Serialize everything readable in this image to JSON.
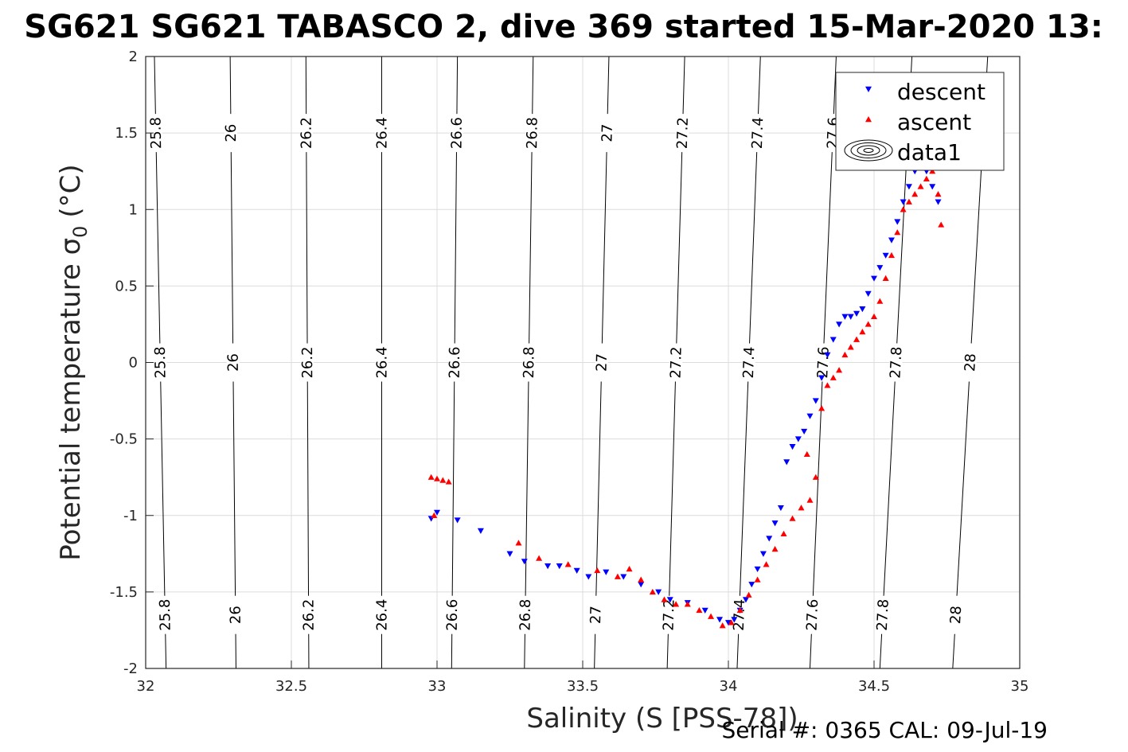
{
  "chart_data": {
    "type": "scatter",
    "title": "SG621 SG621 TABASCO 2, dive 369 started 15-Mar-2020 13:",
    "xlabel": "Salinity (S [PSS-78])",
    "ylabel": "Potential temperature σ",
    "ylabel_sub": "0",
    "ylabel_unit": "(°C)",
    "footer": "Serial #: 0365  CAL: 09-Jul-19",
    "xlim": [
      32,
      35
    ],
    "ylim": [
      -2,
      2
    ],
    "x_ticks": [
      "32",
      "32.5",
      "33",
      "33.5",
      "34",
      "34.5",
      "35"
    ],
    "y_ticks": [
      "-2",
      "-1.5",
      "-1",
      "-0.5",
      "0",
      "0.5",
      "1",
      "1.5",
      "2"
    ],
    "grid": true,
    "legend_position": "top-right",
    "legend": [
      "descent",
      "ascent",
      "data1"
    ],
    "density_contours": {
      "levels": [
        25.8,
        26,
        26.2,
        26.4,
        26.6,
        26.8,
        27,
        27.2,
        27.4,
        27.6,
        27.8,
        28
      ],
      "labels": [
        "25.8",
        "26",
        "26.2",
        "26.4",
        "26.6",
        "26.8",
        "27",
        "27.2",
        "27.4",
        "27.6",
        "27.8",
        "28"
      ],
      "salinity_at_temp_-2": [
        32.07,
        32.31,
        32.56,
        32.81,
        33.05,
        33.3,
        33.54,
        33.79,
        34.03,
        34.28,
        34.52,
        34.77
      ],
      "salinity_at_temp_2": [
        32.03,
        32.29,
        32.55,
        32.81,
        33.07,
        33.33,
        33.59,
        33.85,
        34.11,
        34.37,
        34.63,
        34.89
      ]
    },
    "series": [
      {
        "name": "descent",
        "color": "#0000ff",
        "marker": "triangle-down",
        "x": [
          32.98,
          33.0,
          33.07,
          33.15,
          33.25,
          33.3,
          33.38,
          33.42,
          33.48,
          33.52,
          33.58,
          33.64,
          33.7,
          33.76,
          33.8,
          33.86,
          33.92,
          33.97,
          34.0,
          34.02,
          34.04,
          34.06,
          34.08,
          34.1,
          34.12,
          34.14,
          34.16,
          34.18,
          34.2,
          34.22,
          34.24,
          34.26,
          34.28,
          34.3,
          34.32,
          34.34,
          34.36,
          34.38,
          34.4,
          34.42,
          34.44,
          34.46,
          34.48,
          34.5,
          34.52,
          34.54,
          34.56,
          34.58,
          34.6,
          34.62,
          34.64,
          34.66,
          34.68,
          34.7,
          34.72
        ],
        "y": [
          -1.02,
          -0.98,
          -1.03,
          -1.1,
          -1.25,
          -1.3,
          -1.33,
          -1.33,
          -1.36,
          -1.4,
          -1.37,
          -1.4,
          -1.45,
          -1.5,
          -1.55,
          -1.57,
          -1.62,
          -1.68,
          -1.7,
          -1.68,
          -1.62,
          -1.55,
          -1.45,
          -1.35,
          -1.25,
          -1.15,
          -1.05,
          -0.95,
          -0.65,
          -0.55,
          -0.5,
          -0.45,
          -0.35,
          -0.25,
          -0.1,
          0.05,
          0.15,
          0.25,
          0.3,
          0.3,
          0.32,
          0.35,
          0.45,
          0.55,
          0.62,
          0.7,
          0.8,
          0.92,
          1.05,
          1.15,
          1.25,
          1.28,
          1.25,
          1.15,
          1.05
        ]
      },
      {
        "name": "ascent",
        "color": "#ff0000",
        "marker": "triangle-up",
        "x": [
          32.98,
          33.0,
          33.02,
          33.04,
          32.99,
          33.28,
          33.35,
          33.45,
          33.55,
          33.62,
          33.66,
          33.7,
          33.74,
          33.78,
          33.82,
          33.86,
          33.9,
          33.94,
          33.98,
          34.01,
          34.04,
          34.07,
          34.1,
          34.13,
          34.16,
          34.19,
          34.22,
          34.25,
          34.28,
          34.3,
          34.27,
          34.32,
          34.34,
          34.36,
          34.38,
          34.4,
          34.42,
          34.44,
          34.46,
          34.48,
          34.5,
          34.52,
          34.54,
          34.56,
          34.58,
          34.6,
          34.62,
          34.64,
          34.66,
          34.68,
          34.7,
          34.72,
          34.73
        ],
        "y": [
          -0.75,
          -0.76,
          -0.77,
          -0.78,
          -1.0,
          -1.18,
          -1.28,
          -1.32,
          -1.36,
          -1.4,
          -1.35,
          -1.42,
          -1.5,
          -1.55,
          -1.58,
          -1.58,
          -1.62,
          -1.66,
          -1.72,
          -1.7,
          -1.62,
          -1.52,
          -1.42,
          -1.32,
          -1.22,
          -1.12,
          -1.02,
          -0.95,
          -0.9,
          -0.75,
          -0.6,
          -0.3,
          -0.15,
          -0.1,
          -0.05,
          0.05,
          0.1,
          0.15,
          0.2,
          0.25,
          0.3,
          0.4,
          0.55,
          0.7,
          0.85,
          1.0,
          1.05,
          1.1,
          1.15,
          1.2,
          1.25,
          1.1,
          0.9
        ]
      }
    ]
  }
}
